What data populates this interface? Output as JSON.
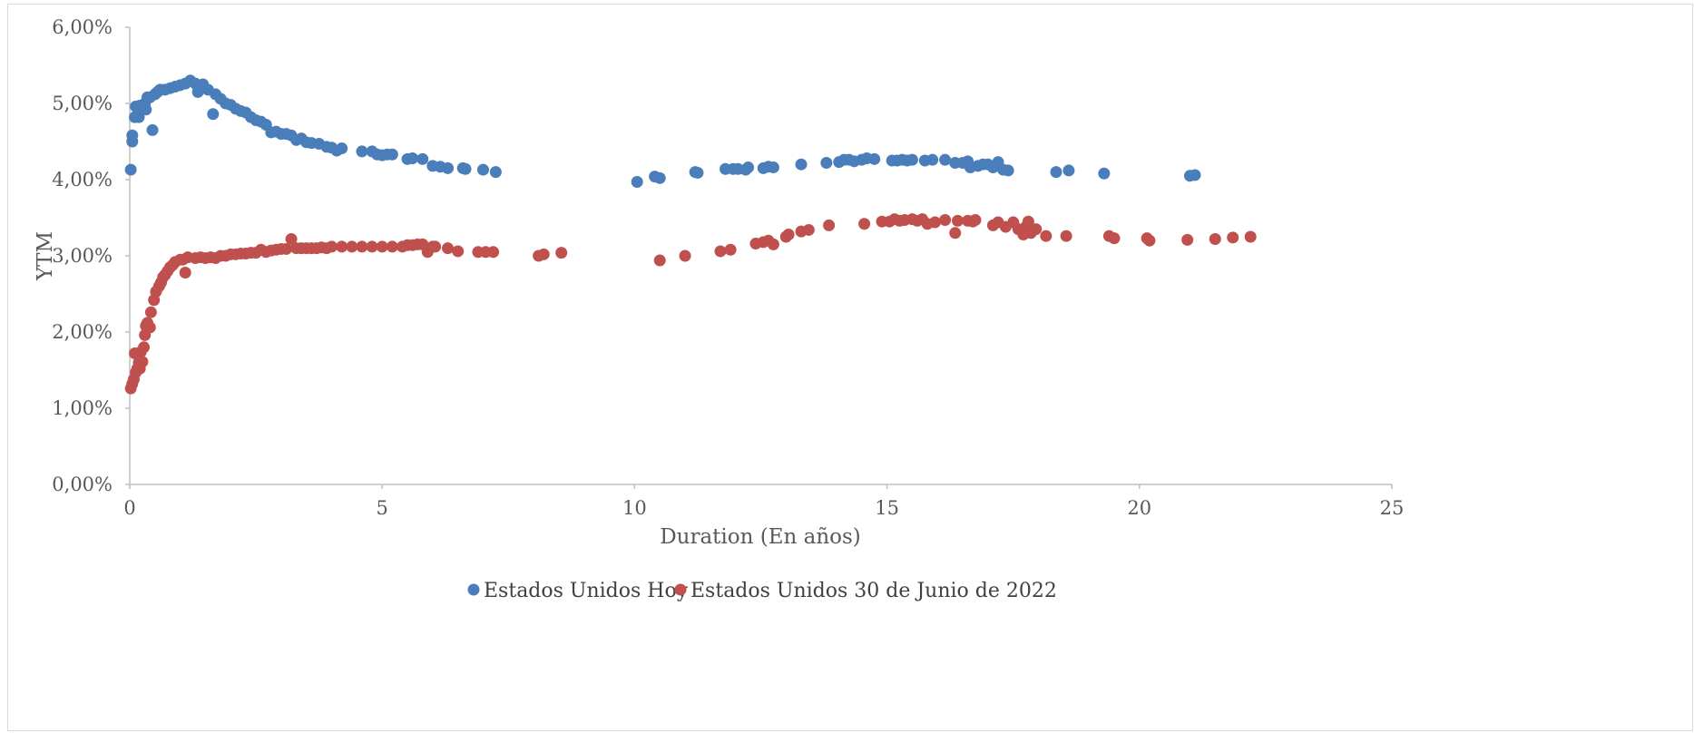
{
  "chart_data": {
    "type": "scatter",
    "title": "",
    "xlabel": "Duration (En años)",
    "ylabel": "YTM",
    "xlim": [
      0,
      25
    ],
    "ylim": [
      0,
      0.06
    ],
    "x_ticks": [
      "0",
      "5",
      "10",
      "15",
      "20",
      "25"
    ],
    "y_ticks": [
      "0,00%",
      "1,00%",
      "2,00%",
      "3,00%",
      "4,00%",
      "5,00%",
      "6,00%"
    ],
    "grid": false,
    "legend_position": "bottom",
    "series": [
      {
        "name": "Estados Unidos Hoy",
        "color": "#4a7ebb",
        "points": [
          [
            0.02,
            4.13
          ],
          [
            0.05,
            4.5
          ],
          [
            0.05,
            4.58
          ],
          [
            0.1,
            4.82
          ],
          [
            0.12,
            4.96
          ],
          [
            0.18,
            4.82
          ],
          [
            0.2,
            4.97
          ],
          [
            0.25,
            4.95
          ],
          [
            0.3,
            5.0
          ],
          [
            0.32,
            4.92
          ],
          [
            0.35,
            5.08
          ],
          [
            0.4,
            5.08
          ],
          [
            0.45,
            4.65
          ],
          [
            0.5,
            5.12
          ],
          [
            0.55,
            5.15
          ],
          [
            0.6,
            5.18
          ],
          [
            0.7,
            5.18
          ],
          [
            0.8,
            5.2
          ],
          [
            0.9,
            5.22
          ],
          [
            1.0,
            5.24
          ],
          [
            1.1,
            5.26
          ],
          [
            1.2,
            5.3
          ],
          [
            1.3,
            5.26
          ],
          [
            1.35,
            5.15
          ],
          [
            1.45,
            5.25
          ],
          [
            1.55,
            5.18
          ],
          [
            1.65,
            4.86
          ],
          [
            1.7,
            5.12
          ],
          [
            1.8,
            5.06
          ],
          [
            1.9,
            5.0
          ],
          [
            2.0,
            4.98
          ],
          [
            2.1,
            4.93
          ],
          [
            2.2,
            4.9
          ],
          [
            2.3,
            4.88
          ],
          [
            2.4,
            4.82
          ],
          [
            2.5,
            4.78
          ],
          [
            2.6,
            4.76
          ],
          [
            2.7,
            4.72
          ],
          [
            2.8,
            4.62
          ],
          [
            2.9,
            4.63
          ],
          [
            3.0,
            4.6
          ],
          [
            3.1,
            4.6
          ],
          [
            3.2,
            4.58
          ],
          [
            3.3,
            4.52
          ],
          [
            3.4,
            4.54
          ],
          [
            3.5,
            4.49
          ],
          [
            3.6,
            4.48
          ],
          [
            3.75,
            4.47
          ],
          [
            3.9,
            4.43
          ],
          [
            4.0,
            4.42
          ],
          [
            4.1,
            4.38
          ],
          [
            4.2,
            4.41
          ],
          [
            4.6,
            4.37
          ],
          [
            4.8,
            4.37
          ],
          [
            4.9,
            4.33
          ],
          [
            5.0,
            4.32
          ],
          [
            5.1,
            4.33
          ],
          [
            5.2,
            4.33
          ],
          [
            5.5,
            4.27
          ],
          [
            5.6,
            4.28
          ],
          [
            5.8,
            4.27
          ],
          [
            6.0,
            4.18
          ],
          [
            6.15,
            4.17
          ],
          [
            6.3,
            4.15
          ],
          [
            6.6,
            4.15
          ],
          [
            6.65,
            4.14
          ],
          [
            7.0,
            4.13
          ],
          [
            7.25,
            4.1
          ],
          [
            10.05,
            3.97
          ],
          [
            10.4,
            4.04
          ],
          [
            10.5,
            4.02
          ],
          [
            11.2,
            4.1
          ],
          [
            11.25,
            4.09
          ],
          [
            11.8,
            4.14
          ],
          [
            11.95,
            4.14
          ],
          [
            12.05,
            4.14
          ],
          [
            12.2,
            4.13
          ],
          [
            12.25,
            4.16
          ],
          [
            12.55,
            4.15
          ],
          [
            12.65,
            4.17
          ],
          [
            12.75,
            4.16
          ],
          [
            13.3,
            4.2
          ],
          [
            13.8,
            4.22
          ],
          [
            14.05,
            4.23
          ],
          [
            14.15,
            4.26
          ],
          [
            14.25,
            4.26
          ],
          [
            14.35,
            4.24
          ],
          [
            14.5,
            4.26
          ],
          [
            14.6,
            4.28
          ],
          [
            14.75,
            4.27
          ],
          [
            15.1,
            4.25
          ],
          [
            15.2,
            4.25
          ],
          [
            15.3,
            4.26
          ],
          [
            15.4,
            4.25
          ],
          [
            15.5,
            4.26
          ],
          [
            15.75,
            4.25
          ],
          [
            15.9,
            4.26
          ],
          [
            16.15,
            4.26
          ],
          [
            16.35,
            4.22
          ],
          [
            16.5,
            4.22
          ],
          [
            16.6,
            4.24
          ],
          [
            16.65,
            4.16
          ],
          [
            16.8,
            4.18
          ],
          [
            16.9,
            4.2
          ],
          [
            17.0,
            4.2
          ],
          [
            17.1,
            4.16
          ],
          [
            17.2,
            4.23
          ],
          [
            17.3,
            4.13
          ],
          [
            17.4,
            4.12
          ],
          [
            18.35,
            4.1
          ],
          [
            18.6,
            4.12
          ],
          [
            19.3,
            4.08
          ],
          [
            21.0,
            4.05
          ],
          [
            21.1,
            4.06
          ]
        ]
      },
      {
        "name": "Estados Unidos 30 de Junio de 2022",
        "color": "#c0504d",
        "points": [
          [
            0.02,
            1.26
          ],
          [
            0.05,
            1.32
          ],
          [
            0.08,
            1.38
          ],
          [
            0.1,
            1.72
          ],
          [
            0.12,
            1.47
          ],
          [
            0.15,
            1.52
          ],
          [
            0.18,
            1.6
          ],
          [
            0.2,
            1.52
          ],
          [
            0.22,
            1.74
          ],
          [
            0.25,
            1.61
          ],
          [
            0.28,
            1.8
          ],
          [
            0.3,
            1.96
          ],
          [
            0.32,
            2.08
          ],
          [
            0.35,
            2.12
          ],
          [
            0.4,
            2.06
          ],
          [
            0.42,
            2.26
          ],
          [
            0.48,
            2.42
          ],
          [
            0.52,
            2.53
          ],
          [
            0.58,
            2.6
          ],
          [
            0.62,
            2.65
          ],
          [
            0.66,
            2.72
          ],
          [
            0.7,
            2.75
          ],
          [
            0.75,
            2.8
          ],
          [
            0.8,
            2.85
          ],
          [
            0.85,
            2.88
          ],
          [
            0.9,
            2.92
          ],
          [
            1.0,
            2.95
          ],
          [
            1.05,
            2.95
          ],
          [
            1.1,
            2.78
          ],
          [
            1.15,
            2.98
          ],
          [
            1.3,
            2.97
          ],
          [
            1.4,
            2.98
          ],
          [
            1.5,
            2.97
          ],
          [
            1.6,
            2.98
          ],
          [
            1.7,
            2.97
          ],
          [
            1.8,
            3.0
          ],
          [
            1.9,
            3.0
          ],
          [
            2.0,
            3.02
          ],
          [
            2.1,
            3.02
          ],
          [
            2.2,
            3.03
          ],
          [
            2.3,
            3.03
          ],
          [
            2.4,
            3.04
          ],
          [
            2.5,
            3.04
          ],
          [
            2.6,
            3.08
          ],
          [
            2.7,
            3.05
          ],
          [
            2.8,
            3.07
          ],
          [
            2.9,
            3.08
          ],
          [
            3.0,
            3.09
          ],
          [
            3.1,
            3.09
          ],
          [
            3.2,
            3.22
          ],
          [
            3.3,
            3.1
          ],
          [
            3.4,
            3.1
          ],
          [
            3.5,
            3.1
          ],
          [
            3.6,
            3.1
          ],
          [
            3.7,
            3.1
          ],
          [
            3.8,
            3.11
          ],
          [
            3.9,
            3.1
          ],
          [
            4.0,
            3.12
          ],
          [
            4.2,
            3.12
          ],
          [
            4.4,
            3.12
          ],
          [
            4.6,
            3.12
          ],
          [
            4.8,
            3.12
          ],
          [
            5.0,
            3.12
          ],
          [
            5.2,
            3.12
          ],
          [
            5.4,
            3.12
          ],
          [
            5.5,
            3.14
          ],
          [
            5.6,
            3.14
          ],
          [
            5.7,
            3.15
          ],
          [
            5.8,
            3.15
          ],
          [
            5.9,
            3.05
          ],
          [
            6.0,
            3.12
          ],
          [
            6.05,
            3.12
          ],
          [
            6.3,
            3.1
          ],
          [
            6.5,
            3.06
          ],
          [
            6.9,
            3.05
          ],
          [
            7.05,
            3.05
          ],
          [
            7.2,
            3.05
          ],
          [
            8.1,
            3.0
          ],
          [
            8.2,
            3.02
          ],
          [
            8.55,
            3.04
          ],
          [
            10.5,
            2.94
          ],
          [
            11.0,
            3.0
          ],
          [
            11.7,
            3.06
          ],
          [
            11.9,
            3.08
          ],
          [
            12.4,
            3.16
          ],
          [
            12.55,
            3.18
          ],
          [
            12.65,
            3.2
          ],
          [
            12.75,
            3.15
          ],
          [
            13.0,
            3.25
          ],
          [
            13.05,
            3.28
          ],
          [
            13.3,
            3.32
          ],
          [
            13.45,
            3.34
          ],
          [
            13.85,
            3.4
          ],
          [
            14.55,
            3.42
          ],
          [
            14.9,
            3.45
          ],
          [
            15.05,
            3.45
          ],
          [
            15.15,
            3.48
          ],
          [
            15.25,
            3.46
          ],
          [
            15.35,
            3.47
          ],
          [
            15.5,
            3.48
          ],
          [
            15.6,
            3.46
          ],
          [
            15.7,
            3.48
          ],
          [
            15.8,
            3.42
          ],
          [
            15.95,
            3.44
          ],
          [
            16.15,
            3.47
          ],
          [
            16.35,
            3.3
          ],
          [
            16.4,
            3.46
          ],
          [
            16.6,
            3.46
          ],
          [
            16.7,
            3.45
          ],
          [
            16.75,
            3.47
          ],
          [
            17.1,
            3.4
          ],
          [
            17.2,
            3.44
          ],
          [
            17.35,
            3.38
          ],
          [
            17.5,
            3.44
          ],
          [
            17.6,
            3.35
          ],
          [
            17.7,
            3.28
          ],
          [
            17.75,
            3.38
          ],
          [
            17.8,
            3.45
          ],
          [
            17.85,
            3.3
          ],
          [
            17.95,
            3.35
          ],
          [
            18.15,
            3.26
          ],
          [
            18.55,
            3.26
          ],
          [
            19.4,
            3.26
          ],
          [
            19.5,
            3.23
          ],
          [
            20.15,
            3.23
          ],
          [
            20.2,
            3.2
          ],
          [
            20.95,
            3.21
          ],
          [
            21.5,
            3.22
          ],
          [
            21.85,
            3.24
          ],
          [
            22.2,
            3.25
          ]
        ]
      }
    ]
  }
}
